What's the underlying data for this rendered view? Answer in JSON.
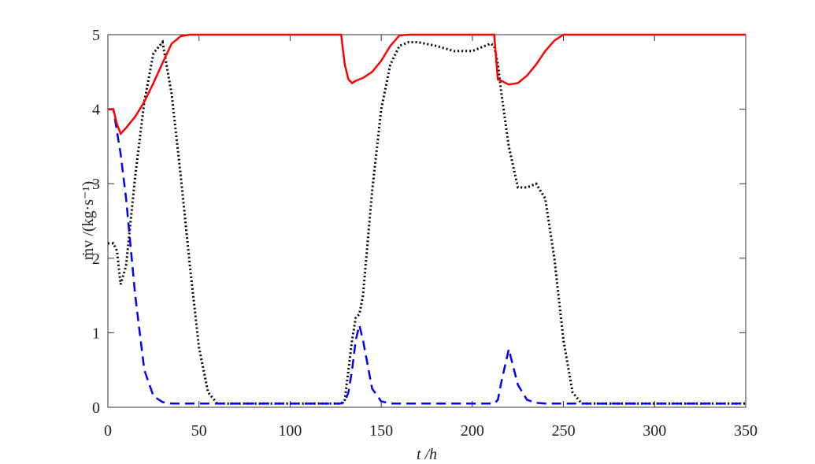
{
  "chart_data": {
    "type": "line",
    "x_label": "t /h",
    "y_label": "ṁv /(kg·s⁻¹)",
    "x": [
      0,
      3,
      5,
      7,
      10,
      15,
      20,
      25,
      30,
      35,
      40,
      45,
      50,
      55,
      60,
      70,
      80,
      90,
      100,
      110,
      120,
      128,
      130,
      132,
      134,
      136,
      138,
      140,
      145,
      150,
      155,
      160,
      165,
      170,
      180,
      190,
      200,
      210,
      212,
      214,
      216,
      220,
      225,
      230,
      235,
      240,
      245,
      250,
      255,
      260,
      270,
      280,
      290,
      300,
      310,
      320,
      330,
      340,
      350
    ],
    "series": [
      {
        "color": "#ff0000",
        "dash": "solid",
        "values": [
          4,
          4,
          3.8,
          3.67,
          3.75,
          3.9,
          4.1,
          4.35,
          4.62,
          4.88,
          4.98,
          5,
          5,
          5,
          5,
          5,
          5,
          5,
          5,
          5,
          5,
          5,
          4.6,
          4.4,
          4.35,
          4.38,
          4.4,
          4.42,
          4.5,
          4.65,
          4.85,
          4.99,
          5,
          5,
          5,
          5,
          5,
          5,
          5,
          4.4,
          4.38,
          4.33,
          4.35,
          4.45,
          4.6,
          4.78,
          4.92,
          5,
          5,
          5,
          5,
          5,
          5,
          5,
          5,
          5,
          5,
          5,
          5
        ]
      },
      {
        "color": "#0000ff",
        "dash": "dashed",
        "values": [
          4,
          4,
          3.7,
          3.4,
          2.8,
          1.5,
          0.5,
          0.15,
          0.07,
          0.05,
          0.05,
          0.05,
          0.05,
          0.05,
          0.05,
          0.05,
          0.05,
          0.05,
          0.05,
          0.05,
          0.05,
          0.05,
          0.07,
          0.2,
          0.5,
          0.9,
          1.1,
          0.9,
          0.25,
          0.08,
          0.05,
          0.05,
          0.05,
          0.05,
          0.05,
          0.05,
          0.05,
          0.05,
          0.05,
          0.1,
          0.35,
          0.78,
          0.3,
          0.1,
          0.06,
          0.05,
          0.05,
          0.05,
          0.05,
          0.05,
          0.05,
          0.05,
          0.05,
          0.05,
          0.05,
          0.05,
          0.05,
          0.05,
          0.05
        ]
      },
      {
        "color": "#000000",
        "dash": "dotted",
        "values": [
          2.2,
          2.2,
          2.1,
          1.65,
          1.9,
          3.1,
          4.1,
          4.75,
          4.9,
          4.2,
          3.1,
          1.9,
          0.8,
          0.2,
          0.05,
          0.05,
          0.05,
          0.05,
          0.05,
          0.05,
          0.05,
          0.05,
          0.1,
          0.5,
          0.9,
          1.2,
          1.25,
          1.5,
          2.9,
          4.0,
          4.6,
          4.85,
          4.9,
          4.9,
          4.85,
          4.78,
          4.78,
          4.88,
          4.85,
          4.6,
          4.2,
          3.5,
          2.95,
          2.95,
          3.0,
          2.8,
          2.0,
          0.9,
          0.2,
          0.05,
          0.05,
          0.05,
          0.05,
          0.05,
          0.05,
          0.05,
          0.05,
          0.05,
          0.05
        ]
      }
    ],
    "xlim": [
      0,
      350
    ],
    "xticks": [
      0,
      50,
      100,
      150,
      200,
      250,
      300,
      350
    ],
    "ylim": [
      0,
      5
    ],
    "yticks": [
      0,
      1,
      2,
      3,
      4,
      5
    ],
    "grid": false
  }
}
